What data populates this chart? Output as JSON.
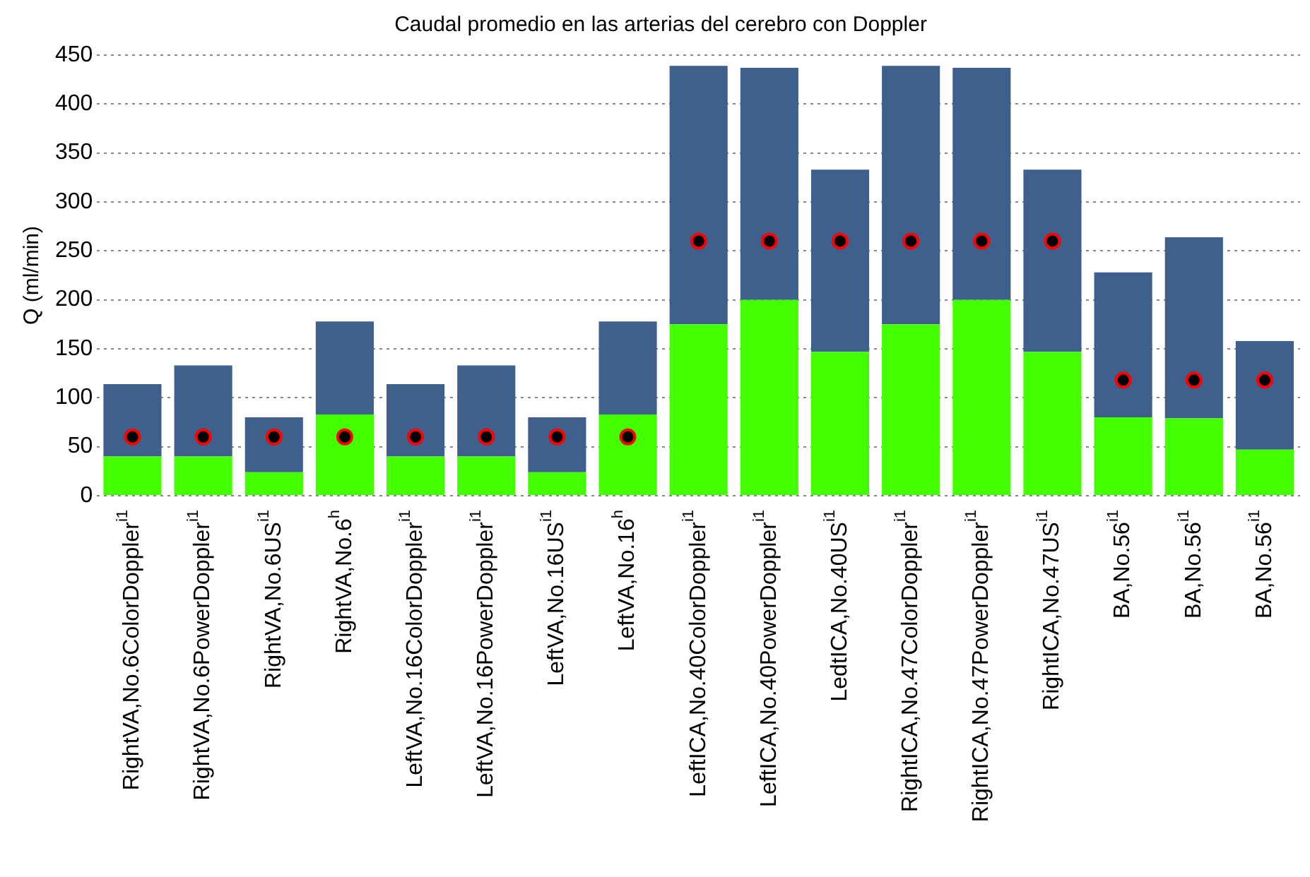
{
  "chart_data": {
    "type": "bar",
    "title": "Caudal promedio en las arterias del cerebro con Doppler",
    "ylabel": "Q (ml/min)",
    "categories": [
      "RightVA,No.6ColorDoppler$^{i1}$",
      "RightVA,No.6PowerDoppler$^{i1}$",
      "RightVA,No.6US$^{i1}$",
      "RightVA,No.6$^{h}$",
      "LeftVA,No.16ColorDoppler$^{i1}$",
      "LeftVA,No.16PowerDoppler$^{i1}$",
      "LeftVA,No.16US$^{i1}$",
      "LeftVA,No.16$^{h}$",
      "LeftICA,No.40ColorDoppler$^{i1}$",
      "LeftICA,No.40PowerDoppler$^{i1}$",
      "LedtICA,No.40US$^{i1}$",
      "RightICA,No.47ColorDoppler$^{i1}$",
      "RightICA,No.47PowerDoppler$^{i1}$",
      "RightICA,No.47US$^{i1}$",
      "BA,No.56$^{i1}$",
      "BA,No.56$^{i1}$",
      "BA,No.56$^{i1}$"
    ],
    "stacked": true,
    "series": [
      {
        "color": "#44ff00",
        "values": [
          40,
          40,
          24,
          83,
          40,
          40,
          24,
          83,
          175,
          200,
          147,
          175,
          200,
          147,
          80,
          79,
          47
        ]
      },
      {
        "color": "#3f5f8c",
        "values": [
          74,
          93,
          56,
          95,
          74,
          93,
          56,
          95,
          264,
          237,
          186,
          264,
          237,
          186,
          148,
          185,
          111
        ]
      },
      {
        "type": "scatter",
        "color": "#000000",
        "marker": "circle",
        "values": [
          60,
          60,
          60,
          60,
          60,
          60,
          60,
          60,
          260,
          260,
          260,
          260,
          260,
          260,
          118,
          118,
          118
        ]
      }
    ],
    "ylim": [
      0,
      450
    ],
    "yticks": [
      0,
      50,
      100,
      150,
      200,
      250,
      300,
      350,
      400,
      450
    ],
    "grid": "y",
    "legend": false
  }
}
